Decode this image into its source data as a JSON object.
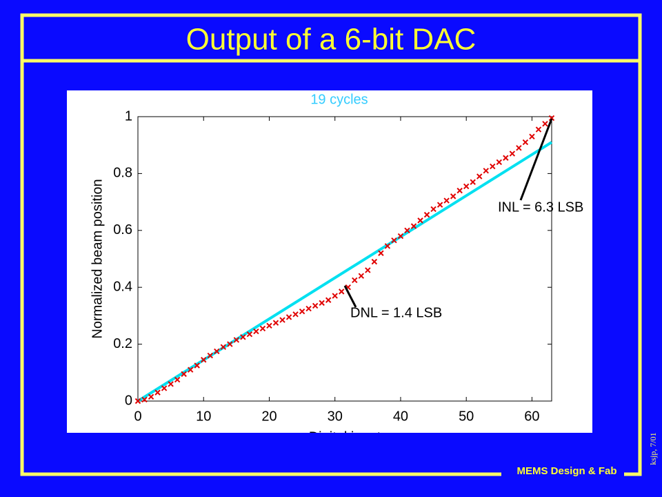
{
  "slide": {
    "title": "Output of a 6-bit DAC",
    "footer": "MEMS Design & Fab",
    "side_note": "ksjp, 7/01"
  },
  "chart_data": {
    "type": "scatter",
    "xlabel": "Digital input",
    "ylabel": "Normalized beam position",
    "annotations": [
      "19 cycles",
      "INL = 6.3 LSB",
      "DNL = 1.4 LSB"
    ],
    "xlim": [
      0,
      63
    ],
    "ylim": [
      0,
      1
    ],
    "xticks": [
      0,
      10,
      20,
      30,
      40,
      50,
      60
    ],
    "yticks": [
      0,
      0.2,
      0.4,
      0.6,
      0.8,
      1
    ],
    "series": [
      {
        "color": "#00e0f0",
        "style": "line",
        "x": [
          0,
          63
        ],
        "values": [
          0,
          0.91
        ]
      },
      {
        "color": "#e00000",
        "style": "marker",
        "x": [
          0,
          1,
          2,
          3,
          4,
          5,
          6,
          7,
          8,
          9,
          10,
          11,
          12,
          13,
          14,
          15,
          16,
          17,
          18,
          19,
          20,
          21,
          22,
          23,
          24,
          25,
          26,
          27,
          28,
          29,
          30,
          31,
          32,
          33,
          34,
          35,
          36,
          37,
          38,
          39,
          40,
          41,
          42,
          43,
          44,
          45,
          46,
          47,
          48,
          49,
          50,
          51,
          52,
          53,
          54,
          55,
          56,
          57,
          58,
          59,
          60,
          61,
          62,
          63
        ],
        "values": [
          0,
          0.005,
          0.015,
          0.03,
          0.045,
          0.06,
          0.075,
          0.095,
          0.11,
          0.125,
          0.145,
          0.16,
          0.175,
          0.19,
          0.2,
          0.215,
          0.225,
          0.235,
          0.245,
          0.255,
          0.265,
          0.275,
          0.285,
          0.295,
          0.305,
          0.315,
          0.325,
          0.335,
          0.345,
          0.355,
          0.37,
          0.385,
          0.4,
          0.425,
          0.44,
          0.46,
          0.49,
          0.52,
          0.545,
          0.565,
          0.58,
          0.6,
          0.615,
          0.635,
          0.655,
          0.675,
          0.69,
          0.705,
          0.72,
          0.74,
          0.755,
          0.77,
          0.79,
          0.81,
          0.825,
          0.84,
          0.855,
          0.87,
          0.89,
          0.91,
          0.93,
          0.955,
          0.975,
          0.995
        ]
      }
    ]
  }
}
